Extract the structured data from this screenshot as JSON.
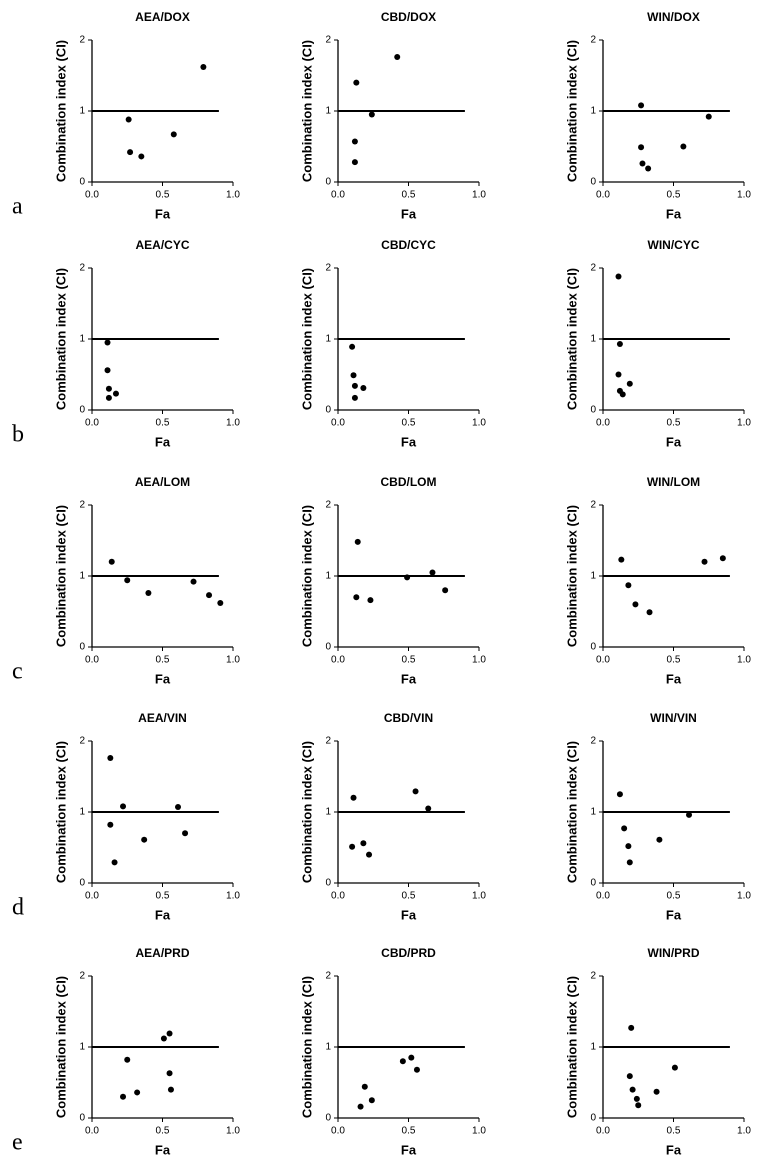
{
  "row_labels": [
    "a",
    "b",
    "c",
    "d",
    "e"
  ],
  "chart_data": [
    {
      "type": "scatter",
      "title": "AEA/DOX",
      "x_label": "Fa",
      "y_label": "Combination index (CI)",
      "xlim": [
        0,
        1
      ],
      "ylim": [
        0,
        2
      ],
      "xticks": [
        {
          "value": 0,
          "label": "0.0"
        },
        0.5,
        {
          "value": 1,
          "label": "1.0"
        }
      ],
      "yticks": [
        0,
        1,
        2
      ],
      "hline": 1,
      "hline_xmax": 0.9,
      "color": "#000000",
      "x": [
        0.27,
        0.35,
        0.26,
        0.58,
        0.79
      ],
      "values": [
        0.42,
        0.36,
        0.88,
        0.67,
        1.62
      ]
    },
    {
      "type": "scatter",
      "title": "CBD/DOX",
      "x_label": "Fa",
      "y_label": "Combination index (CI)",
      "xlim": [
        0,
        1
      ],
      "ylim": [
        0,
        2
      ],
      "xticks": [
        {
          "value": 0,
          "label": "0.0"
        },
        0.5,
        {
          "value": 1,
          "label": "1.0"
        }
      ],
      "yticks": [
        0,
        1,
        2
      ],
      "hline": 1,
      "hline_xmax": 0.9,
      "color": "#000000",
      "x": [
        0.12,
        0.12,
        0.13,
        0.24,
        0.42
      ],
      "values": [
        0.28,
        0.57,
        1.4,
        0.95,
        1.76
      ]
    },
    {
      "type": "scatter",
      "title": "WIN/DOX",
      "x_label": "Fa",
      "y_label": "Combination index (CI)",
      "xlim": [
        0,
        1
      ],
      "ylim": [
        0,
        2
      ],
      "xticks": [
        {
          "value": 0,
          "label": "0.0"
        },
        0.5,
        {
          "value": 1,
          "label": "1.0"
        }
      ],
      "yticks": [
        0,
        1,
        2
      ],
      "hline": 1,
      "hline_xmax": 0.9,
      "color": "#000000",
      "x": [
        0.27,
        0.27,
        0.28,
        0.32,
        0.57,
        0.75
      ],
      "values": [
        1.08,
        0.49,
        0.26,
        0.19,
        0.5,
        0.92
      ]
    },
    {
      "type": "scatter",
      "title": "AEA/CYC",
      "x_label": "Fa",
      "y_label": "Combination index (CI)",
      "xlim": [
        0,
        1
      ],
      "ylim": [
        0,
        2
      ],
      "xticks": [
        {
          "value": 0,
          "label": "0.0"
        },
        0.5,
        {
          "value": 1,
          "label": "1.0"
        }
      ],
      "yticks": [
        0,
        1,
        2
      ],
      "hline": 1,
      "hline_xmax": 0.9,
      "color": "#000000",
      "x": [
        0.11,
        0.11,
        0.12,
        0.12,
        0.17
      ],
      "values": [
        0.95,
        0.56,
        0.3,
        0.17,
        0.23
      ]
    },
    {
      "type": "scatter",
      "title": "CBD/CYC",
      "x_label": "Fa",
      "y_label": "Combination index (CI)",
      "xlim": [
        0,
        1
      ],
      "ylim": [
        0,
        2
      ],
      "xticks": [
        {
          "value": 0,
          "label": "0.0"
        },
        0.5,
        {
          "value": 1,
          "label": "1.0"
        }
      ],
      "yticks": [
        0,
        1,
        2
      ],
      "hline": 1,
      "hline_xmax": 0.9,
      "color": "#000000",
      "x": [
        0.1,
        0.11,
        0.12,
        0.12,
        0.18
      ],
      "values": [
        0.89,
        0.49,
        0.34,
        0.17,
        0.31
      ]
    },
    {
      "type": "scatter",
      "title": "WIN/CYC",
      "x_label": "Fa",
      "y_label": "Combination index (CI)",
      "xlim": [
        0,
        1
      ],
      "ylim": [
        0,
        2
      ],
      "xticks": [
        {
          "value": 0,
          "label": "0.0"
        },
        0.5,
        {
          "value": 1,
          "label": "1.0"
        }
      ],
      "yticks": [
        0,
        1,
        2
      ],
      "hline": 1,
      "hline_xmax": 0.9,
      "color": "#000000",
      "x": [
        0.11,
        0.12,
        0.11,
        0.12,
        0.14,
        0.19
      ],
      "values": [
        1.88,
        0.93,
        0.5,
        0.27,
        0.22,
        0.37
      ]
    },
    {
      "type": "scatter",
      "title": "AEA/LOM",
      "x_label": "Fa",
      "y_label": "Combination index (CI)",
      "xlim": [
        0,
        1
      ],
      "ylim": [
        0,
        2
      ],
      "xticks": [
        {
          "value": 0,
          "label": "0.0"
        },
        0.5,
        {
          "value": 1,
          "label": "1.0"
        }
      ],
      "yticks": [
        0,
        1,
        2
      ],
      "hline": 1,
      "hline_xmax": 0.9,
      "color": "#000000",
      "x": [
        0.14,
        0.25,
        0.4,
        0.72,
        0.83,
        0.91
      ],
      "values": [
        1.2,
        0.94,
        0.76,
        0.92,
        0.73,
        0.62
      ]
    },
    {
      "type": "scatter",
      "title": "CBD/LOM",
      "x_label": "Fa",
      "y_label": "Combination index (CI)",
      "xlim": [
        0,
        1
      ],
      "ylim": [
        0,
        2
      ],
      "xticks": [
        {
          "value": 0,
          "label": "0.0"
        },
        0.5,
        {
          "value": 1,
          "label": "1.0"
        }
      ],
      "yticks": [
        0,
        1,
        2
      ],
      "hline": 1,
      "hline_xmax": 0.9,
      "color": "#000000",
      "x": [
        0.14,
        0.13,
        0.23,
        0.49,
        0.67,
        0.76
      ],
      "values": [
        1.48,
        0.7,
        0.66,
        0.98,
        1.05,
        0.8
      ]
    },
    {
      "type": "scatter",
      "title": "WIN/LOM",
      "x_label": "Fa",
      "y_label": "Combination index (CI)",
      "xlim": [
        0,
        1
      ],
      "ylim": [
        0,
        2
      ],
      "xticks": [
        {
          "value": 0,
          "label": "0.0"
        },
        0.5,
        {
          "value": 1,
          "label": "1.0"
        }
      ],
      "yticks": [
        0,
        1,
        2
      ],
      "hline": 1,
      "hline_xmax": 0.9,
      "color": "#000000",
      "x": [
        0.13,
        0.18,
        0.23,
        0.33,
        0.72,
        0.85
      ],
      "values": [
        1.23,
        0.87,
        0.6,
        0.49,
        1.2,
        1.25
      ]
    },
    {
      "type": "scatter",
      "title": "AEA/VIN",
      "x_label": "Fa",
      "y_label": "Combination index (CI)",
      "xlim": [
        0,
        1
      ],
      "ylim": [
        0,
        2
      ],
      "xticks": [
        {
          "value": 0,
          "label": "0.0"
        },
        0.5,
        {
          "value": 1,
          "label": "1.0"
        }
      ],
      "yticks": [
        0,
        1,
        2
      ],
      "hline": 1,
      "hline_xmax": 0.9,
      "color": "#000000",
      "x": [
        0.13,
        0.13,
        0.22,
        0.16,
        0.37,
        0.61,
        0.66
      ],
      "values": [
        1.76,
        0.82,
        1.08,
        0.29,
        0.61,
        1.07,
        0.7
      ]
    },
    {
      "type": "scatter",
      "title": "CBD/VIN",
      "x_label": "Fa",
      "y_label": "Combination index (CI)",
      "xlim": [
        0,
        1
      ],
      "ylim": [
        0,
        2
      ],
      "xticks": [
        {
          "value": 0,
          "label": "0.0"
        },
        0.5,
        {
          "value": 1,
          "label": "1.0"
        }
      ],
      "yticks": [
        0,
        1,
        2
      ],
      "hline": 1,
      "hline_xmax": 0.9,
      "color": "#000000",
      "x": [
        0.1,
        0.11,
        0.18,
        0.22,
        0.55,
        0.64
      ],
      "values": [
        0.51,
        1.2,
        0.56,
        0.4,
        1.29,
        1.05
      ]
    },
    {
      "type": "scatter",
      "title": "WIN/VIN",
      "x_label": "Fa",
      "y_label": "Combination index (CI)",
      "xlim": [
        0,
        1
      ],
      "ylim": [
        0,
        2
      ],
      "xticks": [
        {
          "value": 0,
          "label": "0.0"
        },
        0.5,
        {
          "value": 1,
          "label": "1.0"
        }
      ],
      "yticks": [
        0,
        1,
        2
      ],
      "hline": 1,
      "hline_xmax": 0.9,
      "color": "#000000",
      "x": [
        0.12,
        0.15,
        0.18,
        0.19,
        0.4,
        0.61
      ],
      "values": [
        1.25,
        0.77,
        0.52,
        0.29,
        0.61,
        0.96
      ]
    },
    {
      "type": "scatter",
      "title": "AEA/PRD",
      "x_label": "Fa",
      "y_label": "Combination index (CI)",
      "xlim": [
        0,
        1
      ],
      "ylim": [
        0,
        2
      ],
      "xticks": [
        {
          "value": 0,
          "label": "0.0"
        },
        0.5,
        {
          "value": 1,
          "label": "1.0"
        }
      ],
      "yticks": [
        0,
        1,
        2
      ],
      "hline": 1,
      "hline_xmax": 0.9,
      "color": "#000000",
      "x": [
        0.22,
        0.25,
        0.32,
        0.51,
        0.55,
        0.55,
        0.56
      ],
      "values": [
        0.3,
        0.82,
        0.36,
        1.12,
        1.19,
        0.63,
        0.4
      ]
    },
    {
      "type": "scatter",
      "title": "CBD/PRD",
      "x_label": "Fa",
      "y_label": "Combination index (CI)",
      "xlim": [
        0,
        1
      ],
      "ylim": [
        0,
        2
      ],
      "xticks": [
        {
          "value": 0,
          "label": "0.0"
        },
        0.5,
        {
          "value": 1,
          "label": "1.0"
        }
      ],
      "yticks": [
        0,
        1,
        2
      ],
      "hline": 1,
      "hline_xmax": 0.9,
      "color": "#000000",
      "x": [
        0.16,
        0.19,
        0.24,
        0.46,
        0.52,
        0.56
      ],
      "values": [
        0.16,
        0.44,
        0.25,
        0.8,
        0.85,
        0.68
      ]
    },
    {
      "type": "scatter",
      "title": "WIN/PRD",
      "x_label": "Fa",
      "y_label": "Combination index (CI)",
      "xlim": [
        0,
        1
      ],
      "ylim": [
        0,
        2
      ],
      "xticks": [
        {
          "value": 0,
          "label": "0.0"
        },
        0.5,
        {
          "value": 1,
          "label": "1.0"
        }
      ],
      "yticks": [
        0,
        1,
        2
      ],
      "hline": 1,
      "hline_xmax": 0.9,
      "color": "#000000",
      "x": [
        0.19,
        0.2,
        0.21,
        0.24,
        0.25,
        0.38,
        0.51
      ],
      "values": [
        0.59,
        1.27,
        0.4,
        0.27,
        0.18,
        0.37,
        0.71
      ]
    }
  ]
}
